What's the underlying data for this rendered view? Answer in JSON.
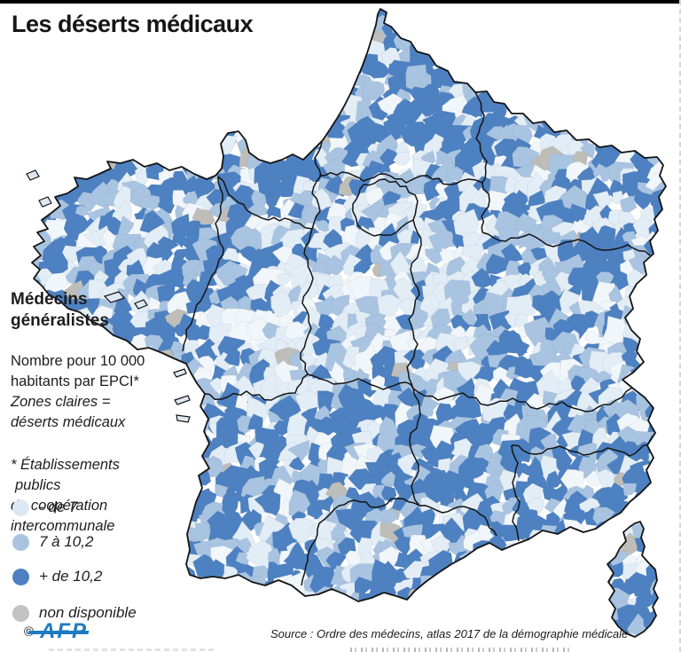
{
  "title": "Les déserts médicaux",
  "panel": {
    "heading": [
      "Médecins",
      "généralistes"
    ],
    "desc": [
      "Nombre pour 10 000",
      "habitants par EPCI*"
    ],
    "desc_italic": [
      "Zones claires =",
      "déserts médicaux"
    ],
    "footnote": [
      "* Établissements",
      "publics",
      "de coopération",
      "intercommunale"
    ]
  },
  "legend": {
    "items": [
      {
        "key": "less-than-7",
        "label": "- de 7",
        "color": "#dce9f4"
      },
      {
        "key": "7-to-10-2",
        "label": "7 à 10,2",
        "color": "#a9c4e1"
      },
      {
        "key": "more-than-10-2",
        "label": "+ de 10,2",
        "color": "#4d81c1"
      },
      {
        "key": "not-available",
        "label": "non disponible",
        "color": "#c2c2c2"
      }
    ]
  },
  "footer": {
    "copyright_symbol": "©",
    "agency": "AFP",
    "source": "Source : Ordre des médecins, atlas 2017 de la démographie médicale"
  },
  "palette": {
    "top_bar": "#000000",
    "afp_blue": "#1f7ac0",
    "dashed_frame": "#d6d6d6",
    "text": "#1d1d1d"
  },
  "map": {
    "colors": {
      "light": "#e3edf6",
      "light_alt": "#f1f6fa",
      "medium": "#a9c4e1",
      "dark": "#4d81c1",
      "unavailable": "#bfbdb8"
    },
    "coast_color": "#141414",
    "region_border_color": "#141414",
    "island_fill": "#dfe9f3",
    "distribution": {
      "light": 0.33,
      "medium": 0.26,
      "dark": 0.39,
      "unavailable": 0.02
    }
  }
}
